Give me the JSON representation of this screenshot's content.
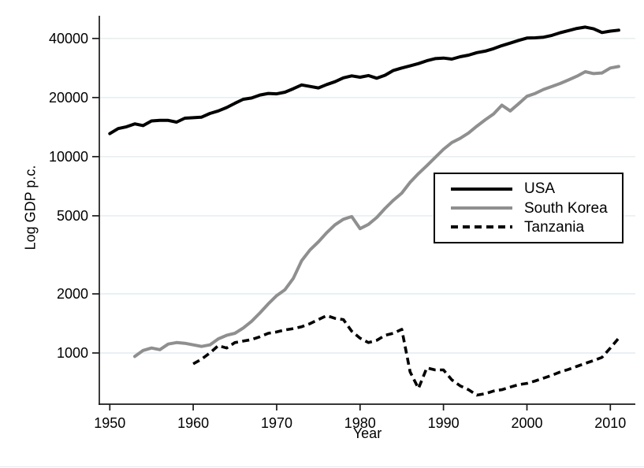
{
  "figure": {
    "ylabel": "Log GDP p.c.",
    "xlabel": "Year"
  },
  "colors": {
    "background": "#ffffff",
    "axis": "#1a1a1a",
    "gridline": "#e2ecef",
    "usa_line": "#000000",
    "south_korea_line": "#8f8f8f",
    "tanzania_line": "#000000",
    "legend_border": "#000000"
  },
  "legend": {
    "items": [
      {
        "label": "USA",
        "style": "solid",
        "color": "#000000"
      },
      {
        "label": "South Korea",
        "style": "solid",
        "color": "#8f8f8f"
      },
      {
        "label": "Tanzania",
        "style": "dashed",
        "color": "#000000"
      }
    ]
  },
  "chart_data": {
    "type": "line",
    "title": "",
    "xlabel": "Year",
    "ylabel": "Log GDP p.c.",
    "yscale": "log",
    "grid": "horizontal-only",
    "legend_position": "inside-middle-right",
    "xticks": [
      1950,
      1960,
      1970,
      1980,
      1990,
      2000,
      2010
    ],
    "yticks": [
      1000,
      2000,
      5000,
      10000,
      20000,
      40000
    ],
    "xlim": [
      1949,
      2013
    ],
    "ylim": [
      550,
      52000
    ],
    "series": [
      {
        "name": "USA",
        "color": "#000000",
        "dash": false,
        "years": [
          1950,
          1951,
          1952,
          1953,
          1954,
          1955,
          1956,
          1957,
          1958,
          1959,
          1960,
          1961,
          1962,
          1963,
          1964,
          1965,
          1966,
          1967,
          1968,
          1969,
          1970,
          1971,
          1972,
          1973,
          1974,
          1975,
          1976,
          1977,
          1978,
          1979,
          1980,
          1981,
          1982,
          1983,
          1984,
          1985,
          1986,
          1987,
          1988,
          1989,
          1990,
          1991,
          1992,
          1993,
          1994,
          1995,
          1996,
          1997,
          1998,
          1999,
          2000,
          2001,
          2002,
          2003,
          2004,
          2005,
          2006,
          2007,
          2008,
          2009,
          2010,
          2011
        ],
        "values": [
          13100,
          13900,
          14200,
          14700,
          14400,
          15200,
          15300,
          15300,
          15000,
          15700,
          15800,
          15900,
          16600,
          17100,
          17800,
          18700,
          19600,
          19900,
          20600,
          21000,
          20900,
          21300,
          22200,
          23200,
          22800,
          22400,
          23300,
          24100,
          25200,
          25800,
          25400,
          25900,
          25100,
          26000,
          27500,
          28300,
          29000,
          29800,
          30800,
          31600,
          31800,
          31400,
          32300,
          32900,
          33900,
          34500,
          35500,
          36800,
          37900,
          39100,
          40200,
          40300,
          40600,
          41500,
          42800,
          43900,
          45000,
          45700,
          44800,
          42900,
          43600,
          44100
        ]
      },
      {
        "name": "South Korea",
        "color": "#8f8f8f",
        "dash": false,
        "years": [
          1953,
          1954,
          1955,
          1956,
          1957,
          1958,
          1959,
          1960,
          1961,
          1962,
          1963,
          1964,
          1965,
          1966,
          1967,
          1968,
          1969,
          1970,
          1971,
          1972,
          1973,
          1974,
          1975,
          1976,
          1977,
          1978,
          1979,
          1980,
          1981,
          1982,
          1983,
          1984,
          1985,
          1986,
          1987,
          1988,
          1989,
          1990,
          1991,
          1992,
          1993,
          1994,
          1995,
          1996,
          1997,
          1998,
          1999,
          2000,
          2001,
          2002,
          2003,
          2004,
          2005,
          2006,
          2007,
          2008,
          2009,
          2010,
          2011
        ],
        "values": [
          960,
          1030,
          1060,
          1040,
          1110,
          1130,
          1120,
          1100,
          1080,
          1100,
          1180,
          1230,
          1260,
          1340,
          1450,
          1600,
          1780,
          1960,
          2100,
          2400,
          2950,
          3350,
          3680,
          4100,
          4500,
          4800,
          4950,
          4300,
          4520,
          4900,
          5450,
          6000,
          6520,
          7400,
          8200,
          9000,
          9900,
          10900,
          11800,
          12400,
          13200,
          14300,
          15400,
          16500,
          18300,
          17100,
          18600,
          20300,
          21000,
          22000,
          22800,
          23600,
          24600,
          25700,
          27100,
          26500,
          26700,
          28300,
          28800
        ]
      },
      {
        "name": "Tanzania",
        "color": "#000000",
        "dash": true,
        "years": [
          1960,
          1961,
          1962,
          1963,
          1964,
          1965,
          1966,
          1967,
          1968,
          1969,
          1970,
          1971,
          1972,
          1973,
          1974,
          1975,
          1976,
          1977,
          1978,
          1979,
          1980,
          1981,
          1982,
          1983,
          1984,
          1985,
          1986,
          1987,
          1988,
          1989,
          1990,
          1991,
          1992,
          1993,
          1994,
          1995,
          1996,
          1997,
          1998,
          1999,
          2000,
          2001,
          2002,
          2003,
          2004,
          2005,
          2006,
          2007,
          2008,
          2009,
          2010,
          2011
        ],
        "values": [
          880,
          930,
          1000,
          1090,
          1060,
          1130,
          1150,
          1170,
          1210,
          1260,
          1280,
          1310,
          1330,
          1360,
          1410,
          1480,
          1550,
          1500,
          1480,
          1290,
          1190,
          1130,
          1160,
          1230,
          1260,
          1320,
          800,
          660,
          840,
          820,
          820,
          730,
          680,
          650,
          610,
          620,
          640,
          650,
          670,
          690,
          700,
          720,
          745,
          770,
          800,
          825,
          855,
          885,
          915,
          950,
          1060,
          1190
        ]
      }
    ]
  }
}
